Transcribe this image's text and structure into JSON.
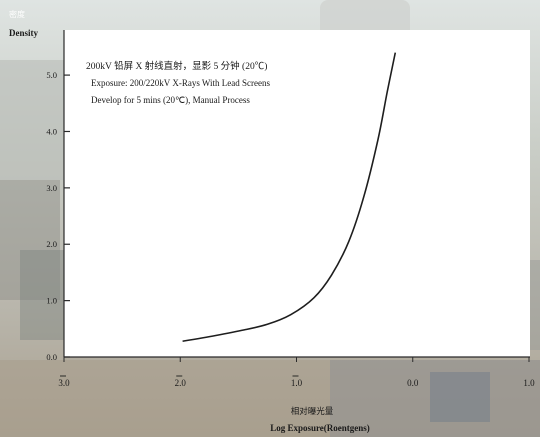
{
  "chart_data": {
    "type": "line",
    "ylabel_cn": "密度",
    "ylabel": "Density",
    "xlabel_cn": "相对曝光量",
    "xlabel": "Log Exposure(Roentgens)",
    "annotation": [
      "200kV 铅屏 X 射线直射，显影 5 分钟 (20℃)",
      "Exposure: 200/220kV X-Rays With Lead Screens",
      "Develop for 5 mins (20℃), Manual Process"
    ],
    "xlim": [
      -3.0,
      1.0
    ],
    "ylim": [
      0.0,
      5.8
    ],
    "x_ticks": [
      {
        "value": -3.0,
        "label": "3.0",
        "bar": true
      },
      {
        "value": -2.0,
        "label": "2.0",
        "bar": true
      },
      {
        "value": -1.0,
        "label": "1.0",
        "bar": true
      },
      {
        "value": 0.0,
        "label": "0.0",
        "bar": false
      },
      {
        "value": 1.0,
        "label": "1.0",
        "bar": false
      }
    ],
    "y_ticks": [
      {
        "value": 0.0,
        "label": "0.0"
      },
      {
        "value": 1.0,
        "label": "1.0"
      },
      {
        "value": 2.0,
        "label": "2.0"
      },
      {
        "value": 3.0,
        "label": "3.0"
      },
      {
        "value": 4.0,
        "label": "4.0"
      },
      {
        "value": 5.0,
        "label": "5.0"
      }
    ],
    "series": [
      {
        "color": "#1e1e1e",
        "x": [
          -1.98,
          -1.7,
          -1.45,
          -1.25,
          -1.05,
          -0.85,
          -0.7,
          -0.55,
          -0.42,
          -0.3,
          -0.22,
          -0.15
        ],
        "y": [
          0.28,
          0.38,
          0.48,
          0.58,
          0.75,
          1.05,
          1.45,
          2.05,
          2.85,
          3.85,
          4.7,
          5.4
        ]
      }
    ],
    "grid": false,
    "legend": "none"
  }
}
